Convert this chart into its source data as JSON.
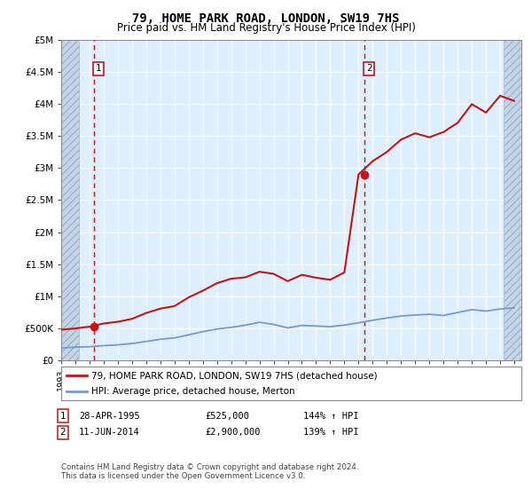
{
  "title": "79, HOME PARK ROAD, LONDON, SW19 7HS",
  "subtitle": "Price paid vs. HM Land Registry's House Price Index (HPI)",
  "legend_line1": "79, HOME PARK ROAD, LONDON, SW19 7HS (detached house)",
  "legend_line2": "HPI: Average price, detached house, Merton",
  "footer": "Contains HM Land Registry data © Crown copyright and database right 2024.\nThis data is licensed under the Open Government Licence v3.0.",
  "sale1_year": 1995.33,
  "sale1_price": 525000,
  "sale2_year": 2014.44,
  "sale2_price": 2900000,
  "xlim": [
    1993.0,
    2025.5
  ],
  "ylim": [
    0,
    5000000
  ],
  "bg_color": "#ddeeff",
  "hatch_bg": "#c5d5e8",
  "red_color": "#cc1111",
  "blue_color": "#7799cc",
  "white": "#ffffff",
  "grid_color": "#ffffff",
  "hpi_years": [
    1993,
    1994,
    1995,
    1996,
    1997,
    1998,
    1999,
    2000,
    2001,
    2002,
    2003,
    2004,
    2005,
    2006,
    2007,
    2008,
    2009,
    2010,
    2011,
    2012,
    2013,
    2014,
    2015,
    2016,
    2017,
    2018,
    2019,
    2020,
    2021,
    2022,
    2023,
    2024,
    2025
  ],
  "hpi_index": [
    72,
    76,
    80,
    85,
    92,
    99,
    109,
    121,
    130,
    148,
    167,
    185,
    193,
    205,
    218,
    208,
    192,
    202,
    200,
    197,
    203,
    215,
    230,
    248,
    258,
    262,
    264,
    262,
    278,
    298,
    290,
    295,
    300
  ],
  "hatch_left_end": 1994.25,
  "hatch_right_start": 2024.25,
  "xtick_years": [
    1993,
    1994,
    1995,
    1996,
    1997,
    1998,
    1999,
    2000,
    2001,
    2002,
    2003,
    2004,
    2005,
    2006,
    2007,
    2008,
    2009,
    2010,
    2011,
    2012,
    2013,
    2014,
    2015,
    2016,
    2017,
    2018,
    2019,
    2020,
    2021,
    2022,
    2023,
    2024,
    2025
  ],
  "ytick_vals": [
    0,
    500000,
    1000000,
    1500000,
    2000000,
    2500000,
    3000000,
    3500000,
    4000000,
    4500000,
    5000000
  ],
  "ytick_labels": [
    "£0",
    "£500K",
    "£1M",
    "£1.5M",
    "£2M",
    "£2.5M",
    "£3M",
    "£3.5M",
    "£4M",
    "£4.5M",
    "£5M"
  ]
}
